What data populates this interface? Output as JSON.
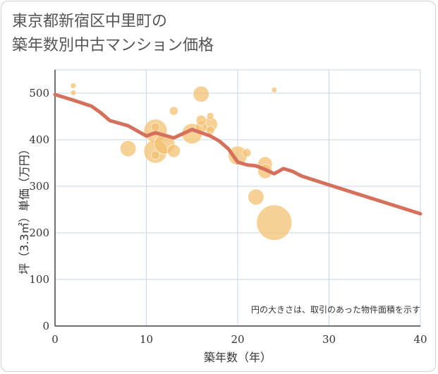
{
  "title": {
    "line1": "東京都新宿区中里町の",
    "line2": "築年数別中古マンション価格"
  },
  "chart_data": {
    "type": "scatter",
    "xlabel": "築年数（年）",
    "ylabel": "坪（3.3㎡）単価（万円）",
    "xlim": [
      0,
      40
    ],
    "ylim": [
      0,
      550
    ],
    "xticks": [
      0,
      10,
      20,
      30,
      40
    ],
    "yticks": [
      0,
      100,
      200,
      300,
      400,
      500
    ],
    "grid": true,
    "note": "円の大きさは、取引のあった物件面積を示す",
    "colors": {
      "bubble": "#f3c070",
      "line": "#d4705c",
      "grid": "#c9d6e6"
    },
    "bubbles": [
      {
        "x": 2,
        "y": 516,
        "size": 2
      },
      {
        "x": 2,
        "y": 501,
        "size": 2
      },
      {
        "x": 8,
        "y": 381,
        "size": 9
      },
      {
        "x": 11,
        "y": 419,
        "size": 14
      },
      {
        "x": 11,
        "y": 427,
        "size": 4
      },
      {
        "x": 11,
        "y": 375,
        "size": 14
      },
      {
        "x": 11,
        "y": 367,
        "size": 4
      },
      {
        "x": 12,
        "y": 391,
        "size": 12
      },
      {
        "x": 13,
        "y": 462,
        "size": 4
      },
      {
        "x": 13,
        "y": 376,
        "size": 7
      },
      {
        "x": 15,
        "y": 413,
        "size": 12
      },
      {
        "x": 16,
        "y": 498,
        "size": 9
      },
      {
        "x": 16,
        "y": 442,
        "size": 5
      },
      {
        "x": 16,
        "y": 427,
        "size": 6
      },
      {
        "x": 17,
        "y": 451,
        "size": 3
      },
      {
        "x": 17,
        "y": 433,
        "size": 8
      },
      {
        "x": 17,
        "y": 420,
        "size": 4
      },
      {
        "x": 20,
        "y": 366,
        "size": 11
      },
      {
        "x": 21,
        "y": 372,
        "size": 4
      },
      {
        "x": 22,
        "y": 277,
        "size": 9
      },
      {
        "x": 23,
        "y": 348,
        "size": 8
      },
      {
        "x": 23,
        "y": 332,
        "size": 8
      },
      {
        "x": 24,
        "y": 222,
        "size": 22
      },
      {
        "x": 24,
        "y": 507,
        "size": 2
      }
    ],
    "trend": {
      "x": [
        0,
        2,
        4,
        5,
        6,
        8,
        10,
        11,
        13,
        15,
        17,
        18,
        19,
        20,
        21,
        22,
        23,
        24,
        25,
        26,
        27,
        30,
        35,
        40
      ],
      "y": [
        497,
        485,
        472,
        458,
        441,
        430,
        408,
        415,
        404,
        422,
        408,
        397,
        380,
        352,
        346,
        344,
        336,
        327,
        338,
        332,
        322,
        303,
        272,
        241
      ]
    }
  }
}
